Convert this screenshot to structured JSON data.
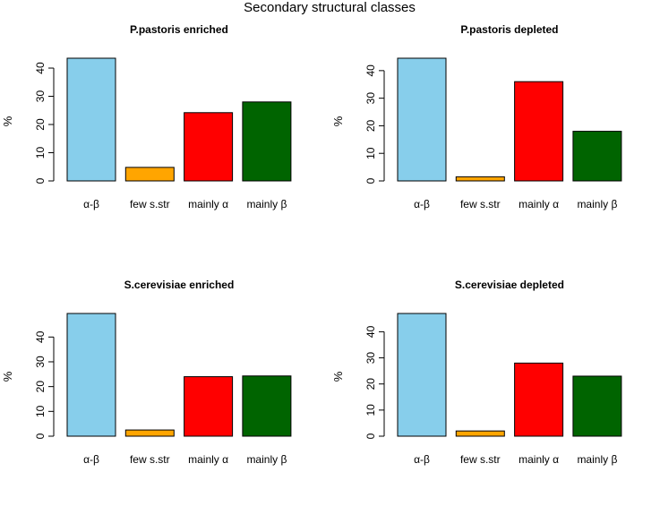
{
  "figure": {
    "title": "Secondary structural classes"
  },
  "chart_data": [
    {
      "type": "bar",
      "title": "P.pastoris enriched",
      "xlabel": "",
      "ylabel": "%",
      "categories": [
        "α-β",
        "few s.str",
        "mainly α",
        "mainly β"
      ],
      "values": [
        43.5,
        4.8,
        24.2,
        28.0
      ],
      "colors": [
        "#87CEEB",
        "#FFA500",
        "#FF0000",
        "#006400"
      ],
      "yticks": [
        0,
        10,
        20,
        30,
        40
      ],
      "ylim": [
        0,
        43.5
      ]
    },
    {
      "type": "bar",
      "title": "P.pastoris depleted",
      "xlabel": "",
      "ylabel": "%",
      "categories": [
        "α-β",
        "few s.str",
        "mainly α",
        "mainly β"
      ],
      "values": [
        44.5,
        1.5,
        36.0,
        18.0
      ],
      "colors": [
        "#87CEEB",
        "#FFA500",
        "#FF0000",
        "#006400"
      ],
      "yticks": [
        0,
        10,
        20,
        30,
        40
      ],
      "ylim": [
        0,
        44.5
      ]
    },
    {
      "type": "bar",
      "title": "S.cerevisiae enriched",
      "xlabel": "",
      "ylabel": "%",
      "categories": [
        "α-β",
        "few s.str",
        "mainly α",
        "mainly β"
      ],
      "values": [
        49.5,
        2.5,
        24.0,
        24.3
      ],
      "colors": [
        "#87CEEB",
        "#FFA500",
        "#FF0000",
        "#006400"
      ],
      "yticks": [
        0,
        10,
        20,
        30,
        40
      ],
      "ylim": [
        0,
        49.5
      ]
    },
    {
      "type": "bar",
      "title": "S.cerevisiae depleted",
      "xlabel": "",
      "ylabel": "%",
      "categories": [
        "α-β",
        "few s.str",
        "mainly α",
        "mainly β"
      ],
      "values": [
        47.0,
        2.0,
        28.0,
        23.0
      ],
      "colors": [
        "#87CEEB",
        "#FFA500",
        "#FF0000",
        "#006400"
      ],
      "yticks": [
        0,
        10,
        20,
        30,
        40
      ],
      "ylim": [
        0,
        47.0
      ]
    }
  ]
}
